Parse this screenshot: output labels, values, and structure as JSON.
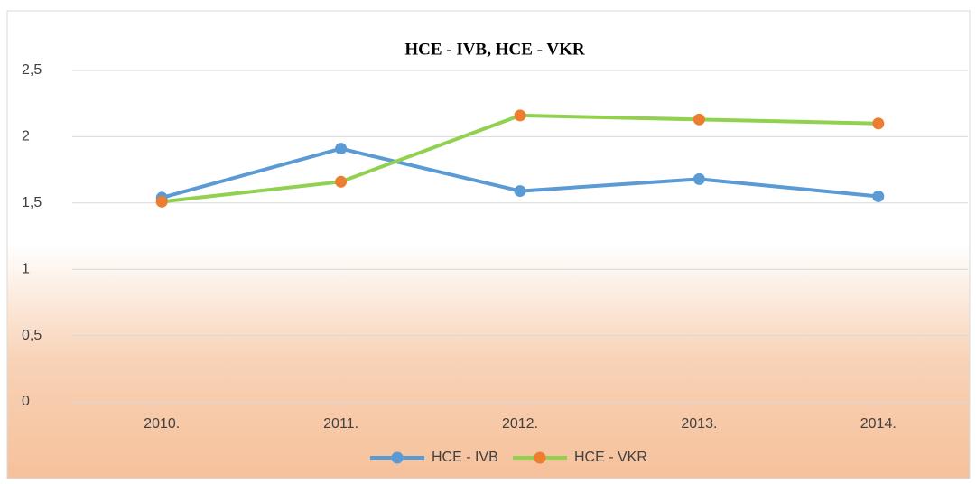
{
  "chart_data": {
    "type": "line",
    "title": "HCE - IVB, HCE - VKR",
    "categories": [
      "2010.",
      "2011.",
      "2012.",
      "2013.",
      "2014."
    ],
    "series": [
      {
        "name": "HCE - IVB",
        "color": "#5b9bd5",
        "marker_color": "#5b9bd5",
        "values": [
          1.54,
          1.91,
          1.59,
          1.68,
          1.55
        ]
      },
      {
        "name": "HCE - VKR",
        "color": "#92d050",
        "marker_color": "#ed7d31",
        "values": [
          1.51,
          1.66,
          2.16,
          2.13,
          2.1
        ]
      }
    ],
    "ylim": [
      0,
      2.5
    ],
    "yticks": [
      0,
      {
        "value": 0.5,
        "label": "0,5"
      },
      1,
      {
        "value": 1.5,
        "label": "1,5"
      },
      2,
      {
        "value": 2.5,
        "label": "2,5"
      }
    ],
    "grid": true,
    "legend": "bottom"
  }
}
